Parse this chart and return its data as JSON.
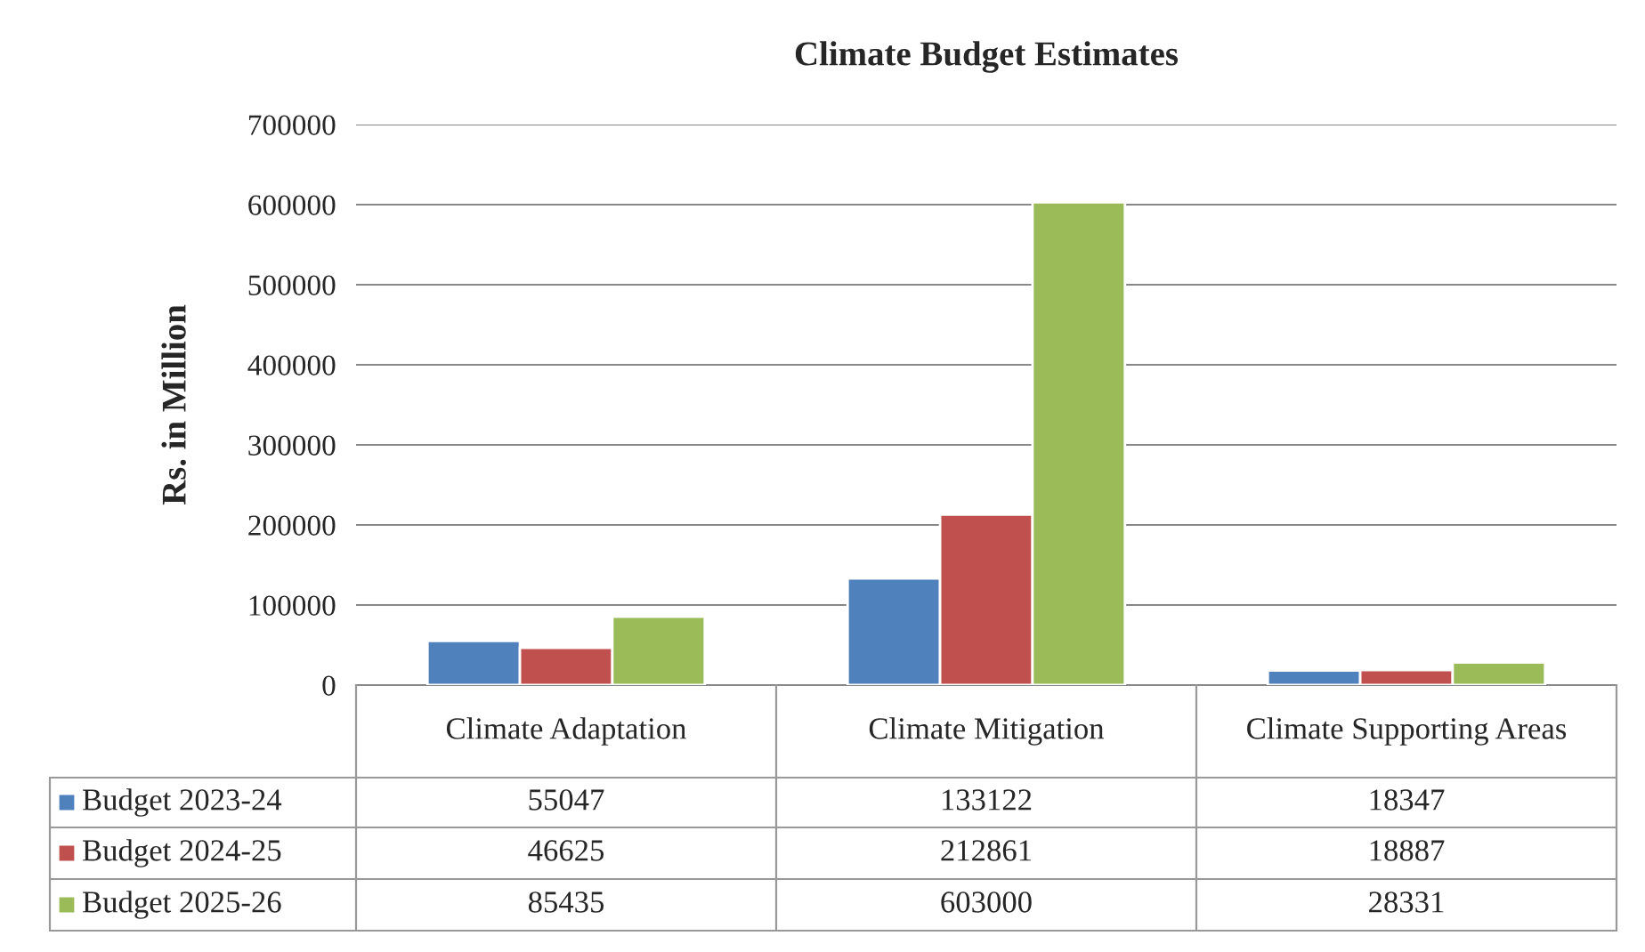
{
  "chart_data": {
    "type": "bar",
    "title": "Climate Budget Estimates",
    "ylabel": "Rs. in Million",
    "categories": [
      "Climate Adaptation",
      "Climate Mitigation",
      "Climate Supporting Areas"
    ],
    "series": [
      {
        "name": "Budget 2023-24",
        "color": "#4f81bd",
        "values": [
          55047,
          133122,
          18347
        ]
      },
      {
        "name": "Budget 2024-25",
        "color": "#c0504d",
        "values": [
          46625,
          212861,
          18887
        ]
      },
      {
        "name": "Budget 2025-26",
        "color": "#9bbb59",
        "values": [
          85435,
          603000,
          28331
        ]
      }
    ],
    "ylim": [
      0,
      700000
    ],
    "yticks": [
      0,
      100000,
      200000,
      300000,
      400000,
      500000,
      600000,
      700000
    ],
    "grid": "y",
    "legend": "bottom",
    "data_labels": true
  }
}
